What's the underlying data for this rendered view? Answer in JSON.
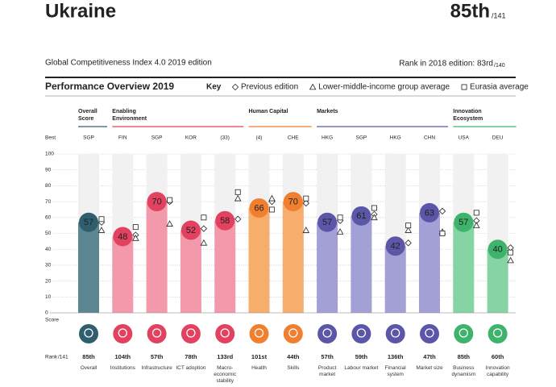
{
  "header": {
    "country": "Ukraine",
    "rank": "85th",
    "rank_of": "/141",
    "edition": "Global Competitiveness Index 4.0 2019 edition",
    "previous_rank": "Rank in 2018 edition: 83rd",
    "previous_rank_of": "/140"
  },
  "chart_data": {
    "type": "bar",
    "title": "Performance Overview 2019",
    "key_label": "Key",
    "legend": [
      {
        "name": "Previous edition",
        "marker": "diamond"
      },
      {
        "name": "Lower-middle-income group average",
        "marker": "triangle"
      },
      {
        "name": "Eurasia average",
        "marker": "square"
      }
    ],
    "best_label": "Best",
    "score_label": "Score",
    "rank_label": "Rank",
    "rank_of": "/141",
    "ylim": [
      0,
      100
    ],
    "yticks": [
      0,
      10,
      20,
      30,
      40,
      50,
      60,
      70,
      80,
      90,
      100
    ],
    "grid": true,
    "groups": [
      {
        "name": "Overall Score",
        "color": "#2f5f6f",
        "bar_color": "#5d8693",
        "pillars": [
          {
            "name": "Overall",
            "value": 57,
            "best": "SGP",
            "rank": "85th",
            "markers": [
              57,
              52,
              59
            ]
          }
        ]
      },
      {
        "name": "Enabling Environment",
        "color": "#e2415f",
        "bar_color": "#f29aab",
        "pillars": [
          {
            "name": "Institutions",
            "value": 48,
            "best": "FIN",
            "rank": "104th",
            "markers": [
              49,
              47,
              54
            ]
          },
          {
            "name": "Infrastructure",
            "value": 70,
            "best": "SGP",
            "rank": "57th",
            "markers": [
              70,
              56,
              71
            ]
          },
          {
            "name": "ICT adoption",
            "value": 52,
            "best": "KOR",
            "rank": "78th",
            "markers": [
              53,
              44,
              60
            ]
          },
          {
            "name": "Macro-economic stability",
            "value": 58,
            "best": "(33)",
            "rank": "133rd",
            "markers": [
              59,
              72,
              76
            ]
          }
        ]
      },
      {
        "name": "Human Capital",
        "color": "#f07f2f",
        "bar_color": "#f7ad6c",
        "pillars": [
          {
            "name": "Health",
            "value": 66,
            "best": "(4)",
            "rank": "101st",
            "markers": [
              70,
              72,
              65
            ]
          },
          {
            "name": "Skills",
            "value": 70,
            "best": "CHE",
            "rank": "44th",
            "markers": [
              69,
              52,
              72
            ]
          }
        ]
      },
      {
        "name": "Markets",
        "color": "#5b56a8",
        "bar_color": "#a3a0d6",
        "pillars": [
          {
            "name": "Product market",
            "value": 57,
            "best": "HKG",
            "rank": "57th",
            "markers": [
              58,
              51,
              60
            ]
          },
          {
            "name": "Labour market",
            "value": 61,
            "best": "SGP",
            "rank": "59th",
            "markers": [
              62,
              60,
              66
            ]
          },
          {
            "name": "Financial system",
            "value": 42,
            "best": "HKG",
            "rank": "136th",
            "markers": [
              44,
              52,
              55
            ]
          },
          {
            "name": "Market size",
            "value": 63,
            "best": "CHN",
            "rank": "47th",
            "markers": [
              64,
              51,
              50
            ]
          }
        ]
      },
      {
        "name": "Innovation Ecosystem",
        "color": "#3db36b",
        "bar_color": "#86d3a4",
        "pillars": [
          {
            "name": "Business dynamism",
            "value": 57,
            "best": "USA",
            "rank": "85th",
            "markers": [
              58,
              55,
              63
            ]
          },
          {
            "name": "Innovation capability",
            "value": 40,
            "best": "DEU",
            "rank": "60th",
            "markers": [
              41,
              33,
              38
            ]
          }
        ]
      }
    ]
  }
}
